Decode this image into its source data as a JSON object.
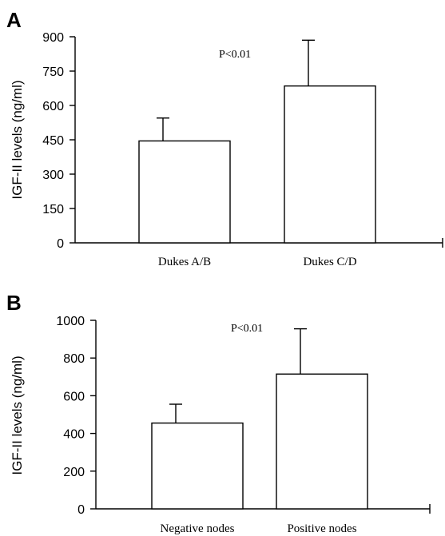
{
  "chart_data": [
    {
      "type": "bar",
      "panel_label": "A",
      "categories": [
        "Dukes A/B",
        "Dukes C/D"
      ],
      "values": [
        445,
        685
      ],
      "error_upper": [
        545,
        885
      ],
      "ylabel": "IGF-II levels (ng/ml)",
      "ylim": [
        0,
        900
      ],
      "yticks": [
        0,
        150,
        300,
        450,
        600,
        750,
        900
      ],
      "annotation": "P<0.01"
    },
    {
      "type": "bar",
      "panel_label": "B",
      "categories": [
        "Negative nodes",
        "Positive nodes"
      ],
      "values": [
        455,
        715
      ],
      "error_upper": [
        555,
        955
      ],
      "ylabel": "IGF-II levels (ng/ml)",
      "ylim": [
        0,
        1000
      ],
      "yticks": [
        0,
        200,
        400,
        600,
        800,
        1000
      ],
      "annotation": "P<0.01"
    }
  ]
}
